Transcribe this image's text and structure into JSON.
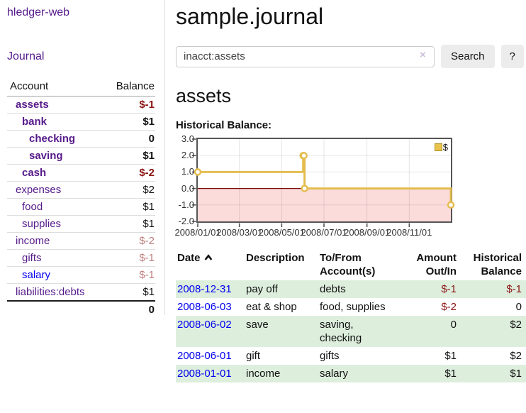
{
  "app": {
    "brand": "hledger-web",
    "nav_journal": "Journal"
  },
  "sidebar": {
    "headers": {
      "account": "Account",
      "balance": "Balance"
    },
    "rows": [
      {
        "label": "assets",
        "balance": "$-1"
      },
      {
        "label": "bank",
        "balance": "$1"
      },
      {
        "label": "checking",
        "balance": "0"
      },
      {
        "label": "saving",
        "balance": "$1"
      },
      {
        "label": "cash",
        "balance": "$-2"
      },
      {
        "label": "expenses",
        "balance": "$2"
      },
      {
        "label": "food",
        "balance": "$1"
      },
      {
        "label": "supplies",
        "balance": "$1"
      },
      {
        "label": "income",
        "balance": "$-2"
      },
      {
        "label": "gifts",
        "balance": "$-1"
      },
      {
        "label": "salary",
        "balance": "$-1"
      },
      {
        "label": "liabilities:debts",
        "balance": "$1"
      }
    ],
    "total": "0"
  },
  "main": {
    "title": "sample.journal",
    "search": {
      "value": "inacct:assets",
      "clear_icon": "×",
      "button": "Search",
      "help": "?"
    },
    "heading": "assets",
    "chart_label": "Historical Balance:"
  },
  "chart_data": {
    "type": "line",
    "step": true,
    "title": "Historical Balance:",
    "series": [
      {
        "name": "$",
        "color": "#e4bd4f",
        "points": [
          [
            "2008-01-01",
            1
          ],
          [
            "2008-06-01",
            2
          ],
          [
            "2008-06-02",
            2
          ],
          [
            "2008-06-03",
            0
          ],
          [
            "2008-12-31",
            -1
          ]
        ]
      }
    ],
    "x_domain": [
      "2008-01-01",
      "2008-12-31"
    ],
    "x_ticks": [
      "2008/01/01",
      "2008/03/01",
      "2008/05/01",
      "2008/07/01",
      "2008/09/01",
      "2008/11/01"
    ],
    "ylim": [
      -2,
      3
    ],
    "y_ticks": [
      3.0,
      2.0,
      1.0,
      0.0,
      -1.0,
      -2.0
    ],
    "grid": true,
    "negative_fill": "#fcdbdb",
    "zero_line_color": "#7c0b0b",
    "legend": {
      "label": "$",
      "position": "top-right"
    }
  },
  "register": {
    "headers": {
      "date": "Date",
      "description": "Description",
      "accounts_l1": "To/From",
      "accounts_l2": "Account(s)",
      "amount_l1": "Amount",
      "amount_l2": "Out/In",
      "balance_l1": "Historical",
      "balance_l2": "Balance"
    },
    "rows": [
      {
        "date": "2008-12-31",
        "desc": "pay off",
        "accts": "debts",
        "amount": "$-1",
        "balance": "$-1"
      },
      {
        "date": "2008-06-03",
        "desc": "eat & shop",
        "accts": "food, supplies",
        "amount": "$-2",
        "balance": "0"
      },
      {
        "date": "2008-06-02",
        "desc": "save",
        "accts": "saving,\nchecking",
        "amount": "0",
        "balance": "$2"
      },
      {
        "date": "2008-06-01",
        "desc": "gift",
        "accts": "gifts",
        "amount": "$1",
        "balance": "$2"
      },
      {
        "date": "2008-01-01",
        "desc": "income",
        "accts": "salary",
        "amount": "$1",
        "balance": "$1"
      }
    ]
  }
}
